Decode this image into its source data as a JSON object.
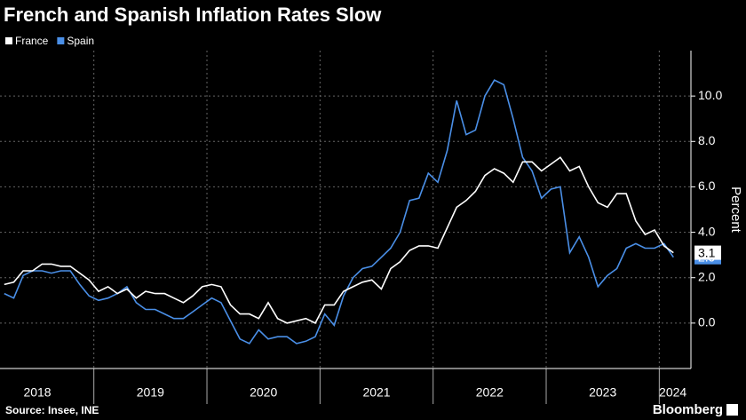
{
  "chart_data": {
    "type": "line",
    "title": "French and Spanish Inflation Rates Slow",
    "source": "Source: Insee, INE",
    "brand": "Bloomberg",
    "y_label": "Percent",
    "x": [
      2018.208,
      2018.292,
      2018.375,
      2018.458,
      2018.542,
      2018.625,
      2018.708,
      2018.792,
      2018.875,
      2018.958,
      2019.042,
      2019.125,
      2019.208,
      2019.292,
      2019.375,
      2019.458,
      2019.542,
      2019.625,
      2019.708,
      2019.792,
      2019.875,
      2019.958,
      2020.042,
      2020.125,
      2020.208,
      2020.292,
      2020.375,
      2020.458,
      2020.542,
      2020.625,
      2020.708,
      2020.792,
      2020.875,
      2020.958,
      2021.042,
      2021.125,
      2021.208,
      2021.292,
      2021.375,
      2021.458,
      2021.542,
      2021.625,
      2021.708,
      2021.792,
      2021.875,
      2021.958,
      2022.042,
      2022.125,
      2022.208,
      2022.292,
      2022.375,
      2022.458,
      2022.542,
      2022.625,
      2022.708,
      2022.792,
      2022.875,
      2022.958,
      2023.042,
      2023.125,
      2023.208,
      2023.292,
      2023.375,
      2023.458,
      2023.542,
      2023.625,
      2023.708,
      2023.792,
      2023.875,
      2023.958,
      2024.042,
      2024.125
    ],
    "xlim": [
      2018.17,
      2024.28
    ],
    "xticks": [
      {
        "value": 2018.5,
        "label": "2018"
      },
      {
        "value": 2019.5,
        "label": "2019"
      },
      {
        "value": 2020.5,
        "label": "2020"
      },
      {
        "value": 2021.5,
        "label": "2021"
      },
      {
        "value": 2022.5,
        "label": "2022"
      },
      {
        "value": 2023.5,
        "label": "2023"
      },
      {
        "value": 2024.12,
        "label": "2024"
      }
    ],
    "xgrid": [
      2019,
      2020,
      2021,
      2022,
      2023,
      2024
    ],
    "ylim": [
      -2,
      12
    ],
    "yticks": [
      {
        "value": 0,
        "label": "0.0"
      },
      {
        "value": 2,
        "label": "2.0"
      },
      {
        "value": 4,
        "label": "4.0"
      },
      {
        "value": 6,
        "label": "6.0"
      },
      {
        "value": 8,
        "label": "8.0"
      },
      {
        "value": 10,
        "label": "10.0"
      }
    ],
    "grid": true,
    "series": [
      {
        "name": "France",
        "color": "#ffffff",
        "values": [
          1.7,
          1.8,
          2.3,
          2.3,
          2.6,
          2.6,
          2.5,
          2.5,
          2.2,
          1.9,
          1.4,
          1.6,
          1.3,
          1.5,
          1.1,
          1.4,
          1.3,
          1.3,
          1.1,
          0.9,
          1.2,
          1.6,
          1.7,
          1.6,
          0.8,
          0.4,
          0.4,
          0.2,
          0.9,
          0.2,
          0.0,
          0.1,
          0.2,
          0.0,
          0.8,
          0.8,
          1.4,
          1.6,
          1.8,
          1.9,
          1.5,
          2.4,
          2.7,
          3.2,
          3.4,
          3.4,
          3.3,
          4.2,
          5.1,
          5.4,
          5.8,
          6.5,
          6.8,
          6.6,
          6.2,
          7.1,
          7.1,
          6.7,
          7.0,
          7.3,
          6.7,
          6.9,
          6.0,
          5.3,
          5.1,
          5.7,
          5.7,
          4.5,
          3.9,
          4.1,
          3.4,
          3.1
        ]
      },
      {
        "name": "Spain",
        "color": "#4a8fe7",
        "values": [
          1.3,
          1.1,
          2.1,
          2.3,
          2.3,
          2.2,
          2.3,
          2.3,
          1.7,
          1.2,
          1.0,
          1.1,
          1.3,
          1.6,
          0.9,
          0.6,
          0.6,
          0.4,
          0.2,
          0.2,
          0.5,
          0.8,
          1.1,
          0.9,
          0.1,
          -0.7,
          -0.9,
          -0.3,
          -0.7,
          -0.6,
          -0.6,
          -0.9,
          -0.8,
          -0.6,
          0.4,
          -0.1,
          1.2,
          2.0,
          2.4,
          2.5,
          2.9,
          3.3,
          4.0,
          5.4,
          5.5,
          6.6,
          6.2,
          7.6,
          9.8,
          8.3,
          8.5,
          10.0,
          10.7,
          10.5,
          9.0,
          7.3,
          6.7,
          5.5,
          5.9,
          6.0,
          3.1,
          3.8,
          2.9,
          1.6,
          2.1,
          2.4,
          3.3,
          3.5,
          3.3,
          3.3,
          3.5,
          2.9
        ]
      }
    ]
  }
}
